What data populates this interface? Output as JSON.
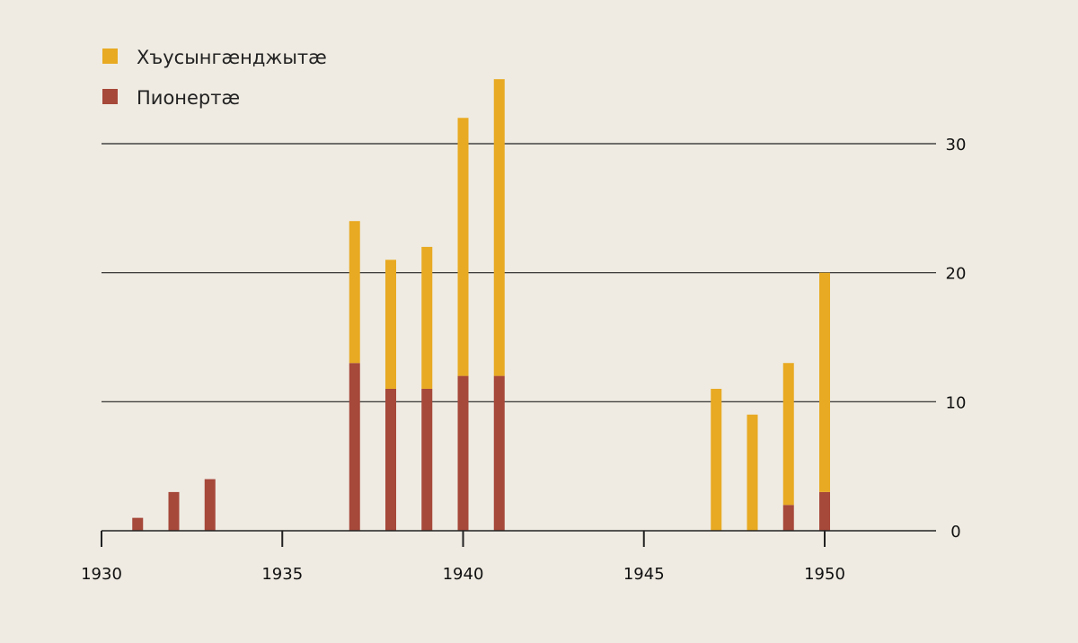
{
  "colors": {
    "background": "#efebe2",
    "series_top": "#e8aa22",
    "series_bottom": "#a6483a",
    "grid": "#222222"
  },
  "chart_data": {
    "type": "bar",
    "stacked": true,
    "x": [
      1931,
      1932,
      1933,
      1937,
      1938,
      1939,
      1940,
      1941,
      1947,
      1948,
      1949,
      1950
    ],
    "series": [
      {
        "name": "Пионертæ",
        "color": "#a6483a",
        "values": [
          1,
          3,
          4,
          13,
          11,
          11,
          12,
          12,
          0,
          0,
          2,
          3
        ]
      },
      {
        "name": "Хъусынгæнджытæ",
        "color": "#e8aa22",
        "values": [
          0,
          0,
          0,
          11,
          10,
          11,
          20,
          23,
          11,
          9,
          11,
          17
        ]
      }
    ],
    "xlim": [
      1930,
      1953
    ],
    "ylim": [
      0,
      33
    ],
    "x_ticks": [
      1930,
      1935,
      1940,
      1945,
      1950
    ],
    "y_ticks": [
      0,
      10,
      20,
      30
    ],
    "x_tick_labels": [
      "1930",
      "1935",
      "1940",
      "1945",
      "1950"
    ],
    "y_tick_labels": [
      "0",
      "10",
      "20",
      "30"
    ],
    "y_axis_position": "right",
    "grid": "horizontal",
    "legend_position": "top-left",
    "legend": [
      "Хъусынгæнджытæ",
      "Пионертæ"
    ],
    "title": "",
    "xlabel": "",
    "ylabel": ""
  }
}
